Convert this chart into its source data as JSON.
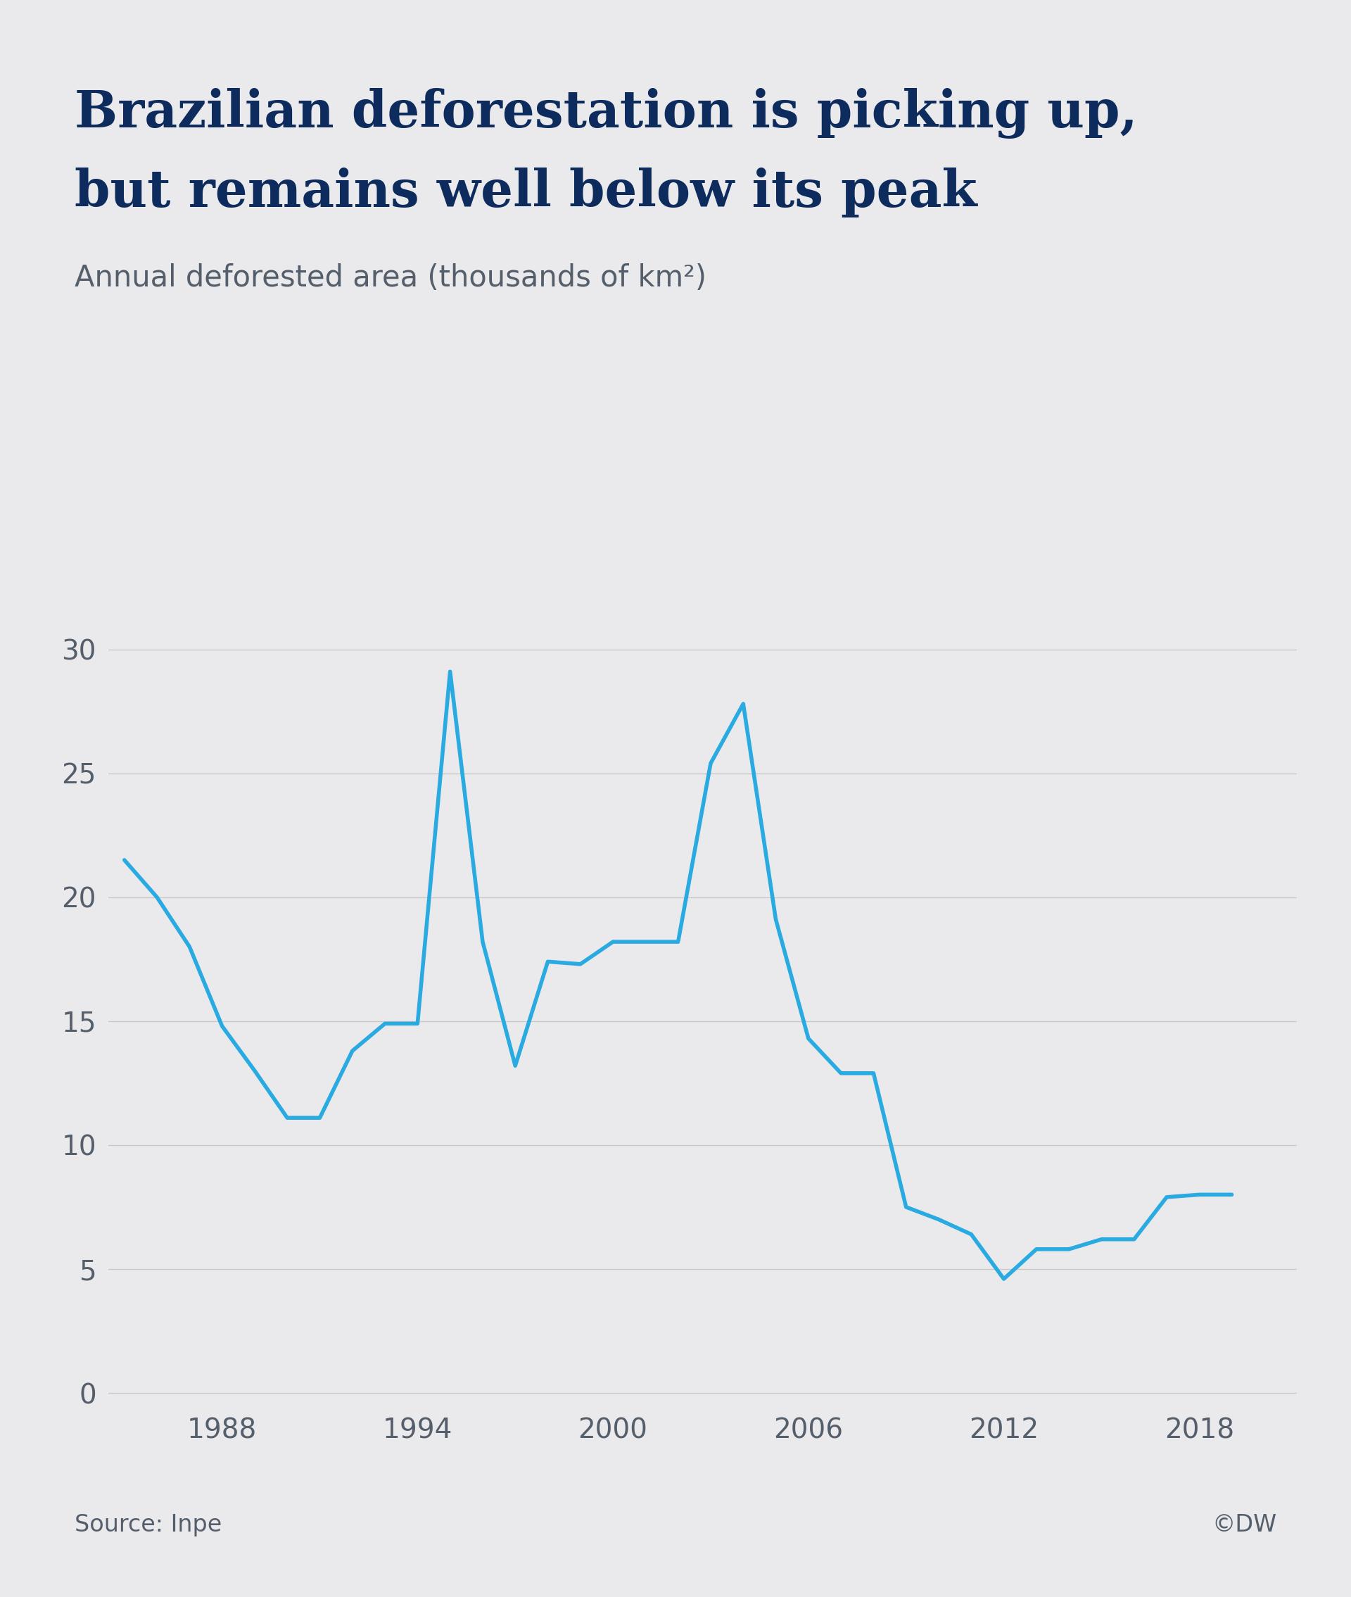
{
  "title_line1": "Brazilian deforestation is picking up,",
  "title_line2": "but remains well below its peak",
  "subtitle": "Annual deforested area (thousands of km²)",
  "source": "Source: Inpe",
  "copyright": "©DW",
  "line_color": "#29ABE2",
  "background_color": "#EAEAEC",
  "title_color": "#0D2B5C",
  "subtitle_color": "#555F6B",
  "axis_color": "#555F6B",
  "grid_color": "#C8C8C8",
  "years": [
    1985,
    1986,
    1987,
    1988,
    1989,
    1990,
    1991,
    1992,
    1993,
    1994,
    1995,
    1996,
    1997,
    1998,
    1999,
    2000,
    2001,
    2002,
    2003,
    2004,
    2005,
    2006,
    2007,
    2008,
    2009,
    2010,
    2011,
    2012,
    2013,
    2014,
    2015,
    2016,
    2017,
    2018,
    2019
  ],
  "values": [
    21.5,
    20.0,
    18.0,
    14.8,
    13.0,
    11.1,
    11.1,
    13.8,
    14.9,
    14.9,
    29.1,
    18.2,
    13.2,
    17.4,
    17.3,
    18.2,
    18.2,
    18.2,
    25.4,
    27.8,
    19.1,
    14.3,
    12.9,
    12.9,
    7.5,
    7.0,
    6.4,
    4.6,
    5.8,
    5.8,
    6.2,
    6.2,
    7.9,
    8.0,
    8.0
  ],
  "xticks": [
    1988,
    1994,
    2000,
    2006,
    2012,
    2018
  ],
  "yticks": [
    0,
    5,
    10,
    15,
    20,
    25,
    30
  ],
  "ylim": [
    -0.5,
    33
  ],
  "xlim": [
    1984.5,
    2021.0
  ],
  "line_width": 4.0,
  "title_fontsize": 52,
  "subtitle_fontsize": 30,
  "axis_fontsize": 28,
  "source_fontsize": 24
}
